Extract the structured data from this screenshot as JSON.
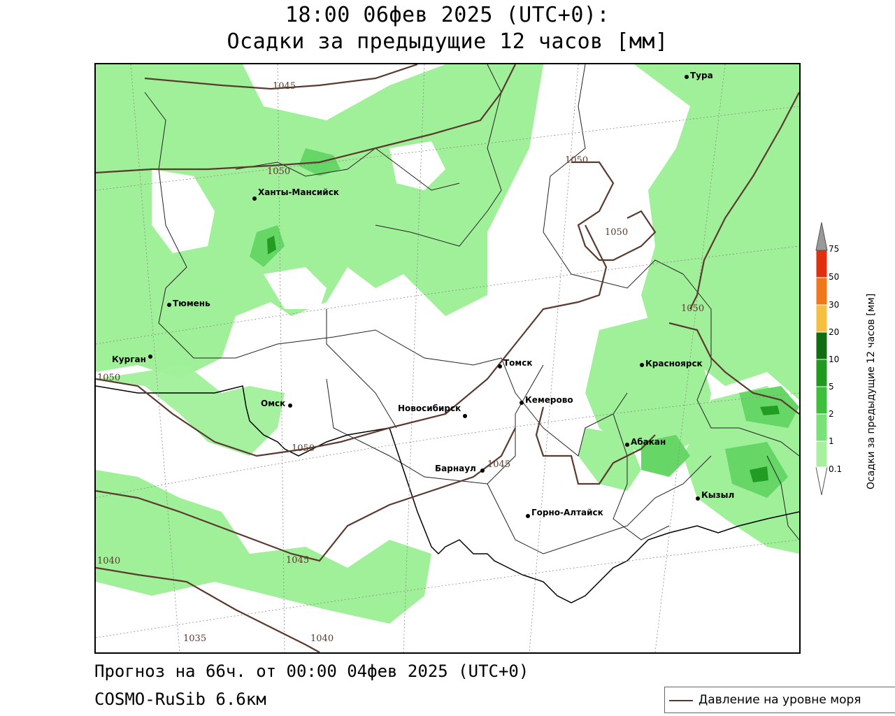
{
  "title": {
    "line1": "18:00 06фев 2025 (UTC+0):",
    "line2": "Осадки за предыдущие 12 часов [мм]"
  },
  "footer": {
    "forecast": "Прогноз на 66ч. от 00:00 04фев 2025 (UTC+0)",
    "model": "COSMO-RuSib 6.6км"
  },
  "pressure_legend": {
    "label": "Давление на уровне моря",
    "color": "#5a3a2e"
  },
  "colorbar": {
    "title": "Осадки за предыдущие 12 часов [мм]",
    "levels": [
      "0.1",
      "1",
      "2",
      "5",
      "10",
      "20",
      "30",
      "50",
      "75"
    ],
    "colors": [
      "#a8f0a0",
      "#78e278",
      "#3cc03c",
      "#1e9a1e",
      "#0f6e0f",
      "#f5c040",
      "#f07818",
      "#e03010",
      "#b80000",
      "#999999"
    ]
  },
  "cities": [
    {
      "name": "Тура"
    },
    {
      "name": "Ханты-Мансийск"
    },
    {
      "name": "Тюмень"
    },
    {
      "name": "Курган"
    },
    {
      "name": "Омск"
    },
    {
      "name": "Томск"
    },
    {
      "name": "Красноярск"
    },
    {
      "name": "Новосибирск"
    },
    {
      "name": "Кемерово"
    },
    {
      "name": "Абакан"
    },
    {
      "name": "Барнаул"
    },
    {
      "name": "Кызыл"
    },
    {
      "name": "Горно-Алтайск"
    }
  ],
  "isobar_labels": [
    "1045",
    "1050",
    "1050",
    "1050",
    "1050",
    "1050",
    "1050",
    "1045",
    "1045",
    "1040",
    "1035",
    "1040"
  ]
}
